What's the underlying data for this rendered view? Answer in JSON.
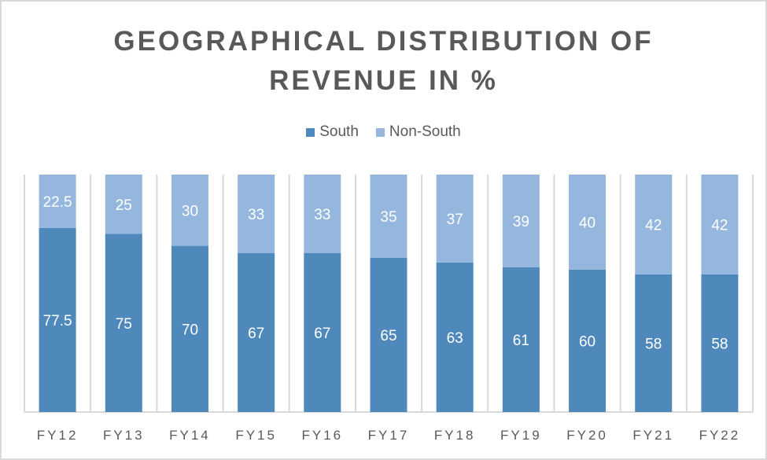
{
  "chart_data": {
    "type": "bar",
    "stacked": true,
    "title_lines": [
      "GEOGRAPHICAL DISTRIBUTION OF",
      "REVENUE IN %"
    ],
    "categories": [
      "FY12",
      "FY13",
      "FY14",
      "FY15",
      "FY16",
      "FY17",
      "FY18",
      "FY19",
      "FY20",
      "FY21",
      "FY22"
    ],
    "series": [
      {
        "name": "South",
        "color": "#4f88bb",
        "values": [
          77.5,
          75,
          70,
          67,
          67,
          65,
          63,
          61,
          60,
          58,
          58
        ]
      },
      {
        "name": "Non-South",
        "color": "#95b7de",
        "values": [
          22.5,
          25,
          30,
          33,
          33,
          35,
          37,
          39,
          40,
          42,
          42
        ]
      }
    ],
    "ylim": [
      0,
      100
    ],
    "legend": "top",
    "grid": "vertical category separators"
  }
}
